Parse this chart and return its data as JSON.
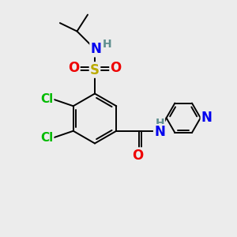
{
  "bg_color": "#ececec",
  "atom_colors": {
    "C": "#000000",
    "H": "#5f8f8f",
    "N": "#0000ee",
    "O": "#ee0000",
    "S": "#bbaa00",
    "Cl": "#00bb00"
  },
  "bond_lw": 1.4,
  "font_size": 11,
  "font_size_h": 10
}
